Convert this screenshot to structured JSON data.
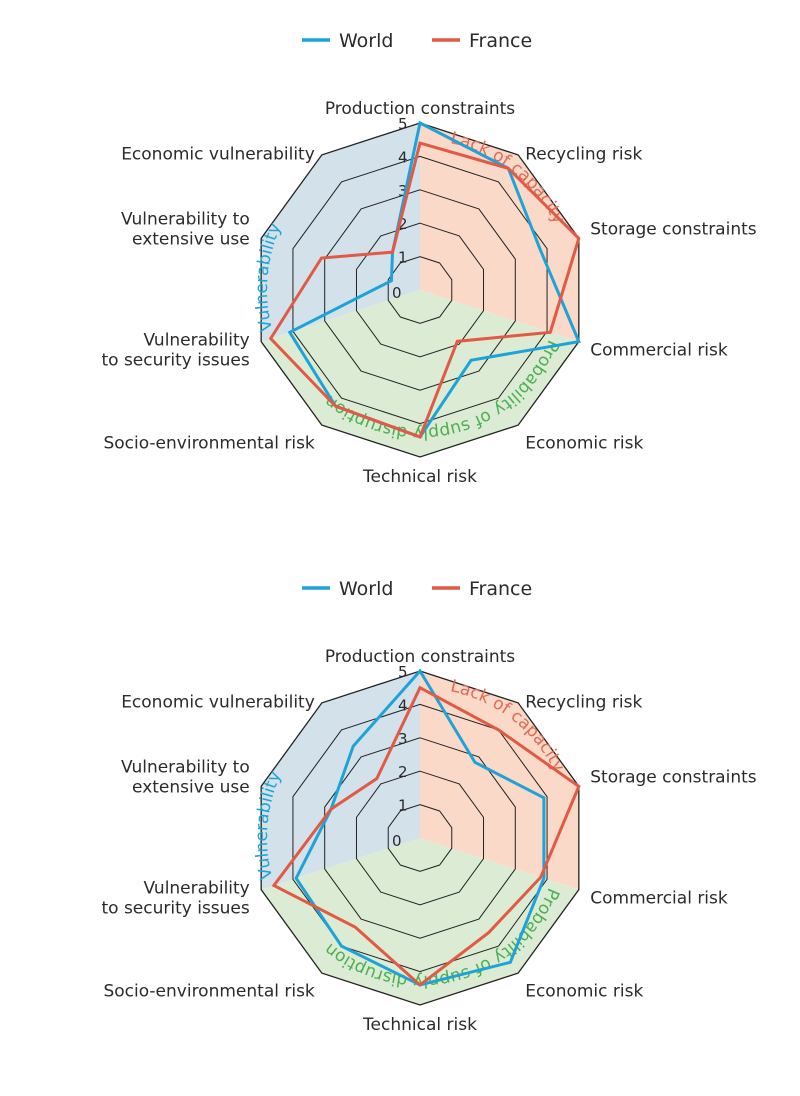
{
  "colors": {
    "world": "#1ea3d8",
    "france": "#e05a45",
    "capacity_sector": "#fbd9c8",
    "disruption_sector": "#dcebd4",
    "vulnerability_sector": "#d3e1ea",
    "grid": "#222222",
    "capacity_text": "#e06a55",
    "disruption_text": "#4caf50",
    "vulnerability_text": "#1ea3d8"
  },
  "chart_data": [
    {
      "type": "radar",
      "legend": [
        "World",
        "France"
      ],
      "legend_position": "top-center",
      "categories": [
        "Production constraints",
        "Recycling risk",
        "Storage constraints",
        "Commercial risk",
        "Economic risk",
        "Technical risk",
        "Socio-environmental risk",
        "Vulnerability to security issues",
        "Vulnerability to extensive use",
        "Economic vulnerability"
      ],
      "category_lines": [
        [
          "Production constraints"
        ],
        [
          "Recycling risk"
        ],
        [
          "Storage constraints"
        ],
        [
          "Commercial risk"
        ],
        [
          "Economic risk"
        ],
        [
          "Technical risk"
        ],
        [
          "Socio-environmental risk"
        ],
        [
          "Vulnerability",
          "to security issues"
        ],
        [
          "Vulnerability to",
          "extensive use"
        ],
        [
          "Economic vulnerability"
        ]
      ],
      "rlim": [
        0,
        5
      ],
      "ticks": [
        "0",
        "1",
        "2",
        "3",
        "4",
        "5"
      ],
      "groups": [
        {
          "name": "Lack of capacity",
          "axes": [
            0,
            1,
            2
          ]
        },
        {
          "name": "Probability of supply disruption",
          "axes": [
            3,
            4,
            5,
            6
          ]
        },
        {
          "name": "Vulnerability",
          "axes": [
            7,
            8,
            9
          ]
        }
      ],
      "series": [
        {
          "name": "World",
          "values": [
            5.0,
            4.5,
            3.8,
            5.0,
            2.6,
            4.4,
            4.3,
            4.1,
            0.9,
            1.4
          ]
        },
        {
          "name": "France",
          "values": [
            4.4,
            4.5,
            5.0,
            4.1,
            1.9,
            4.4,
            4.3,
            4.7,
            3.1,
            1.4
          ]
        }
      ]
    },
    {
      "type": "radar",
      "legend": [
        "World",
        "France"
      ],
      "legend_position": "top-center",
      "categories": [
        "Production constraints",
        "Recycling risk",
        "Storage constraints",
        "Commercial risk",
        "Economic risk",
        "Technical risk",
        "Socio-environmental risk",
        "Vulnerability to security issues",
        "Vulnerability to extensive use",
        "Economic vulnerability"
      ],
      "category_lines": [
        [
          "Production constraints"
        ],
        [
          "Recycling risk"
        ],
        [
          "Storage constraints"
        ],
        [
          "Commercial risk"
        ],
        [
          "Economic risk"
        ],
        [
          "Technical risk"
        ],
        [
          "Socio-environmental risk"
        ],
        [
          "Vulnerability",
          "to security issues"
        ],
        [
          "Vulnerability to",
          "extensive use"
        ],
        [
          "Economic vulnerability"
        ]
      ],
      "rlim": [
        0,
        5
      ],
      "ticks": [
        "0",
        "1",
        "2",
        "3",
        "4",
        "5"
      ],
      "groups": [
        {
          "name": "Lack of capacity",
          "axes": [
            0,
            1,
            2
          ]
        },
        {
          "name": "Probability of supply disruption",
          "axes": [
            3,
            4,
            5,
            6
          ]
        },
        {
          "name": "Vulnerability",
          "axes": [
            7,
            8,
            9
          ]
        }
      ],
      "series": [
        {
          "name": "World",
          "values": [
            5.0,
            2.8,
            3.9,
            3.9,
            4.6,
            4.4,
            4.0,
            3.9,
            2.8,
            3.4
          ]
        },
        {
          "name": "France",
          "values": [
            4.5,
            4.0,
            5.0,
            3.8,
            3.5,
            4.4,
            3.3,
            4.6,
            2.8,
            2.2
          ]
        }
      ]
    }
  ]
}
